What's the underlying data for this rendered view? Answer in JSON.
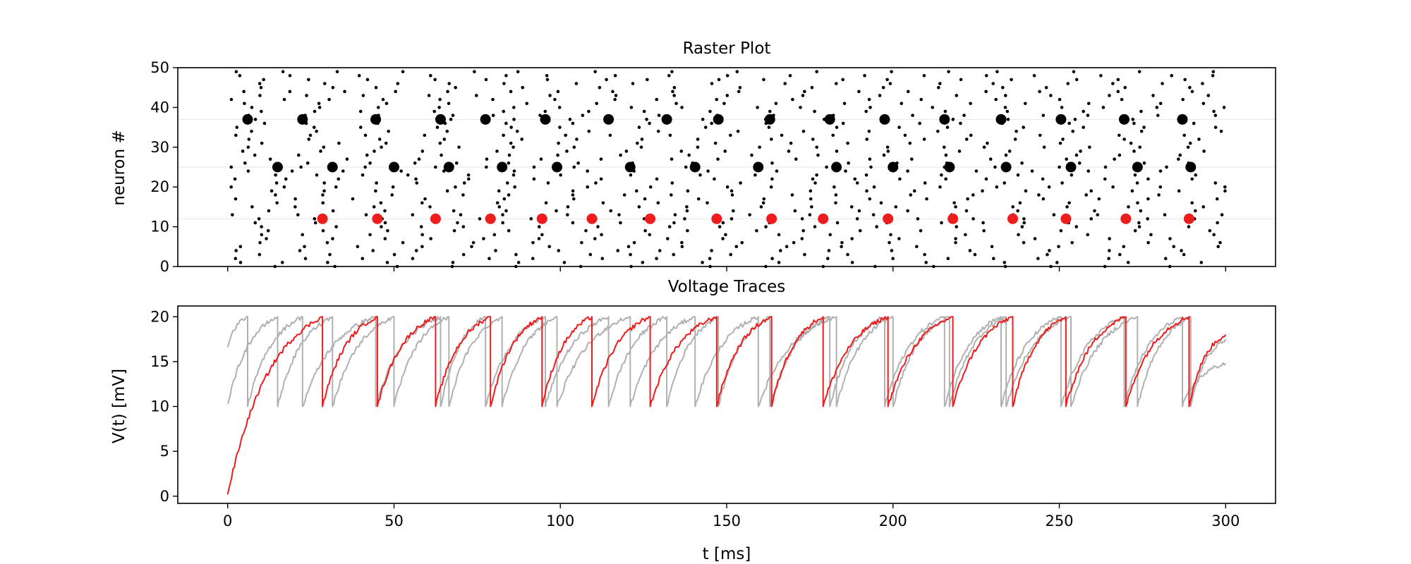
{
  "colors": {
    "highlight": "#ee1c1c",
    "background_trace": "#b0b0b0",
    "spike": "#000000",
    "reference_line": "#e6e6e6"
  },
  "chart_data": [
    {
      "type": "scatter",
      "title": "Raster Plot",
      "xlabel": "",
      "ylabel": "neuron #",
      "xlim": [
        -15,
        315
      ],
      "ylim": [
        0,
        50
      ],
      "x_ticks": [
        0,
        50,
        100,
        150,
        200,
        250,
        300
      ],
      "x_tick_labels_visible": false,
      "y_ticks": [
        0,
        10,
        20,
        30,
        40,
        50
      ],
      "y_tick_labels": [
        "0",
        "10",
        "20",
        "30",
        "40",
        "50"
      ],
      "grid": false,
      "reference_lines_y": [
        12,
        25,
        37
      ],
      "highlighted_neurons": [
        {
          "neuron": 12,
          "color": "#ee1c1c",
          "spike_times": [
            28.5,
            45.0,
            62.5,
            79.0,
            94.5,
            109.5,
            127.0,
            147.0,
            163.5,
            179.0,
            198.5,
            218.0,
            236.0,
            252.0,
            270.0,
            289.0
          ]
        },
        {
          "neuron": 25,
          "color": "#000000",
          "spike_times": [
            15.0,
            31.5,
            50.0,
            66.5,
            82.5,
            99.0,
            121.0,
            140.5,
            159.5,
            183.0,
            200.0,
            217.0,
            234.0,
            253.5,
            273.5,
            289.5
          ]
        },
        {
          "neuron": 37,
          "color": "#000000",
          "spike_times": [
            6.0,
            22.5,
            44.5,
            64.0,
            77.5,
            95.5,
            114.5,
            132.0,
            147.5,
            163.0,
            181.0,
            197.5,
            215.5,
            232.5,
            250.5,
            269.5,
            287.0
          ]
        }
      ],
      "background_spikes": {
        "neurons": 50,
        "t_range": [
          0,
          300
        ],
        "count_estimate": 700,
        "color": "#000000"
      }
    },
    {
      "type": "line",
      "title": "Voltage Traces",
      "xlabel": "t [ms]",
      "ylabel": "V(t) [mV]",
      "xlim": [
        -15,
        315
      ],
      "ylim": [
        -0.8,
        21.2
      ],
      "x_ticks": [
        0,
        50,
        100,
        150,
        200,
        250,
        300
      ],
      "x_tick_labels": [
        "0",
        "50",
        "100",
        "150",
        "200",
        "250",
        "300"
      ],
      "y_ticks": [
        0,
        5,
        10,
        15,
        20
      ],
      "y_tick_labels": [
        "0",
        "5",
        "10",
        "15",
        "20"
      ],
      "grid": false,
      "threshold_mV": 20,
      "reset_mV": 10,
      "series": [
        {
          "neuron": 12,
          "color": "#ee1c1c",
          "v0": 0.2,
          "spike_times": [
            28.5,
            45.0,
            62.5,
            79.0,
            94.5,
            109.5,
            127.0,
            147.0,
            163.5,
            179.0,
            198.5,
            218.0,
            236.0,
            252.0,
            270.0,
            289.0
          ],
          "v_end": 18.0
        },
        {
          "neuron": 25,
          "color": "#b0b0b0",
          "v0": 10.3,
          "spike_times": [
            15.0,
            31.5,
            50.0,
            66.5,
            82.5,
            99.0,
            121.0,
            140.5,
            159.5,
            183.0,
            200.0,
            217.0,
            234.0,
            253.5,
            273.5,
            289.5
          ],
          "v_end": 17.5
        },
        {
          "neuron": 37,
          "color": "#b0b0b0",
          "v0": 16.6,
          "spike_times": [
            6.0,
            22.5,
            44.5,
            64.0,
            77.5,
            95.5,
            114.5,
            132.0,
            147.5,
            163.0,
            181.0,
            197.5,
            215.5,
            232.5,
            250.5,
            269.5,
            287.0
          ],
          "v_end": 14.8
        }
      ]
    }
  ]
}
